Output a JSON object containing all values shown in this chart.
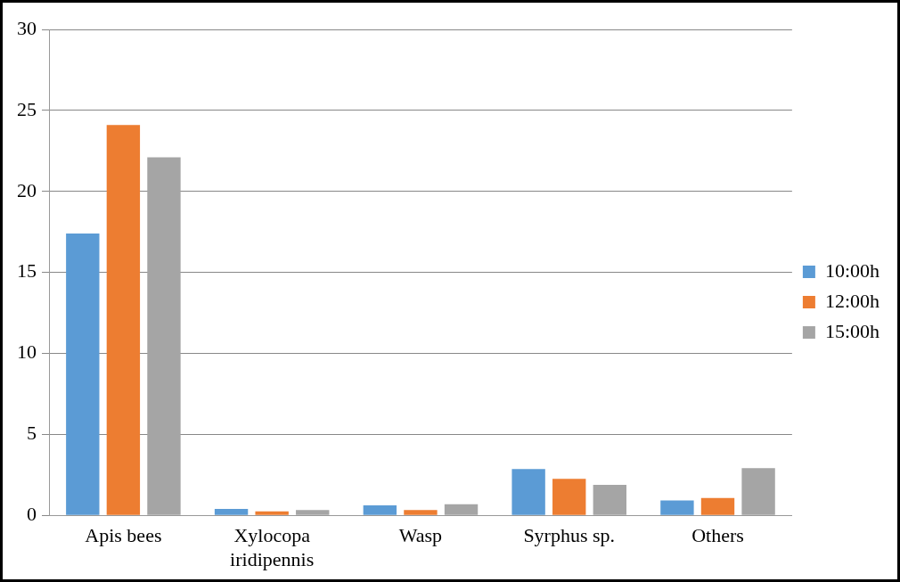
{
  "chart_data": {
    "type": "bar",
    "categories": [
      "Apis bees",
      [
        "Xylocopa",
        "iridipennis"
      ],
      "Wasp",
      "Syrphus sp.",
      "Others"
    ],
    "series": [
      {
        "name": "10:00h",
        "color": "#5b9bd5",
        "values": [
          17.4,
          0.39,
          0.62,
          2.86,
          0.92
        ]
      },
      {
        "name": "12:00h",
        "color": "#ed7d31",
        "values": [
          24.1,
          0.24,
          0.33,
          2.26,
          1.07
        ]
      },
      {
        "name": "15:00h",
        "color": "#a5a5a5",
        "values": [
          22.1,
          0.33,
          0.68,
          1.88,
          2.92
        ]
      }
    ],
    "ylim": [
      0,
      30
    ],
    "yticks": [
      0,
      5,
      10,
      15,
      20,
      25,
      30
    ],
    "grid": "y",
    "legend": "right"
  }
}
